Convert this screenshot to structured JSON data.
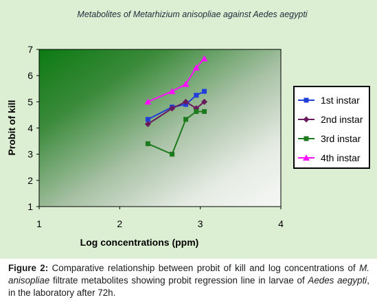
{
  "chart_data": {
    "type": "line",
    "title": "Metabolites of Metarhizium anisopliae against Aedes aegypti",
    "xlabel": "Log concentrations (ppm)",
    "ylabel": "Probit of kill",
    "xlim": [
      1,
      4
    ],
    "ylim": [
      1,
      7
    ],
    "xticks": [
      "1",
      "2",
      "3",
      "4"
    ],
    "yticks": [
      "1",
      "2",
      "3",
      "4",
      "5",
      "6",
      "7"
    ],
    "grid": false,
    "legend_position": "right",
    "series": [
      {
        "name": "1st instar",
        "color": "#1f3fd8",
        "marker": "square",
        "x": [
          2.35,
          2.65,
          2.82,
          2.95,
          3.05
        ],
        "y": [
          4.33,
          4.8,
          4.9,
          5.25,
          5.4
        ]
      },
      {
        "name": "2nd instar",
        "color": "#6a1a5e",
        "marker": "diamond",
        "x": [
          2.35,
          2.65,
          2.82,
          2.95,
          3.05
        ],
        "y": [
          4.15,
          4.75,
          5.0,
          4.75,
          5.0
        ]
      },
      {
        "name": "3rd instar",
        "color": "#1e7a1e",
        "marker": "square",
        "x": [
          2.35,
          2.65,
          2.82,
          2.95,
          3.05
        ],
        "y": [
          3.4,
          3.0,
          4.33,
          4.63,
          4.63
        ]
      },
      {
        "name": "4th instar",
        "color": "#ff10ff",
        "marker": "triangle",
        "x": [
          2.35,
          2.65,
          2.82,
          2.95,
          3.05
        ],
        "y": [
          5.0,
          5.4,
          5.67,
          6.3,
          6.65
        ]
      }
    ]
  },
  "caption": {
    "label": "Figure 2:",
    "part1": "Comparative relationship between probit of kill and log concentrations of",
    "species1": "M. anisopliae",
    "part2": "filtrate metabolites showing probit regression line in larvae of",
    "species2": "Aedes aegypti",
    "part3": ", in the laboratory after 72h."
  }
}
